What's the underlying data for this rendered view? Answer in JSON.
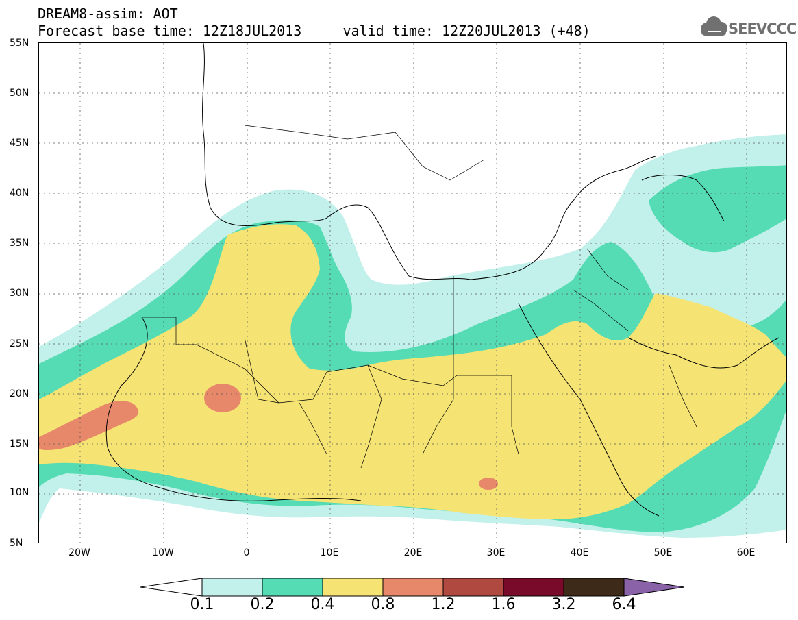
{
  "header": {
    "title_line1": "DREAM8-assim: AOT",
    "title_line2": "Forecast base time: 12Z18JUL2013     valid time: 12Z20JUL2013 (+48)"
  },
  "logo": {
    "text": "SEEVCCC",
    "icon": "cloud-icon"
  },
  "map": {
    "lat_labels": [
      "55N",
      "50N",
      "45N",
      "40N",
      "35N",
      "30N",
      "25N",
      "20N",
      "15N",
      "10N",
      "5N"
    ],
    "lon_labels": [
      "20W",
      "10W",
      "0",
      "10E",
      "20E",
      "30E",
      "40E",
      "50E",
      "60E"
    ],
    "grid": true
  },
  "legend": {
    "labels": [
      "0.1",
      "0.2",
      "0.4",
      "0.8",
      "1.2",
      "1.6",
      "3.2",
      "6.4"
    ],
    "colors": [
      "#c2f0ea",
      "#55dcb4",
      "#f5e474",
      "#e8886a",
      "#b04a40",
      "#7a0a2a",
      "#3e2a18",
      "#8a62a8"
    ]
  }
}
